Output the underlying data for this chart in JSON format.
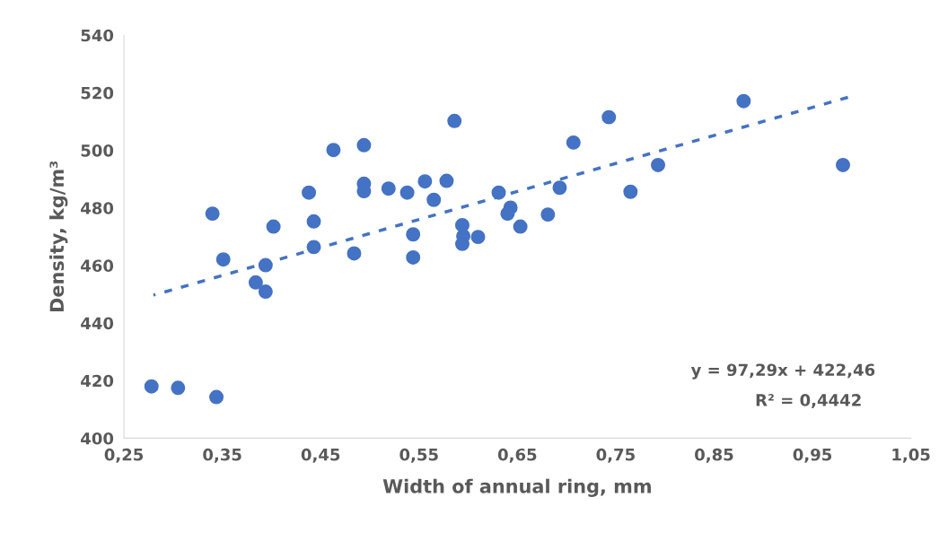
{
  "chart_data": {
    "type": "scatter",
    "xlabel": "Width of annual ring, mm",
    "ylabel": "Density, kg/m³",
    "series": [
      {
        "color": "#4472c4",
        "marker": "circle",
        "x": [
          0.278,
          0.305,
          0.344,
          0.34,
          0.351,
          0.384,
          0.394,
          0.394,
          0.402,
          0.438,
          0.443,
          0.443,
          0.484,
          0.463,
          0.494,
          0.494,
          0.494,
          0.519,
          0.538,
          0.544,
          0.544,
          0.556,
          0.565,
          0.578,
          0.586,
          0.594,
          0.595,
          0.594,
          0.61,
          0.631,
          0.643,
          0.64,
          0.653,
          0.681,
          0.693,
          0.707,
          0.743,
          0.793,
          0.765,
          0.88,
          0.981
        ],
        "values": [
          418.0,
          417.5,
          414.3,
          478.0,
          462.1,
          454.1,
          450.9,
          460.1,
          473.5,
          485.3,
          475.3,
          466.4,
          464.2,
          500.1,
          501.8,
          488.4,
          485.8,
          486.7,
          485.3,
          470.8,
          462.8,
          489.2,
          482.8,
          489.4,
          510.2,
          474.0,
          470.2,
          467.5,
          469.9,
          485.3,
          480.1,
          478.0,
          473.5,
          477.7,
          487.0,
          502.7,
          511.5,
          494.9,
          485.6,
          517.1,
          494.9
        ]
      },
      {
        "type": "line",
        "color": "#4472c4",
        "line_style": "dotted",
        "marker": "none",
        "x": [
          0.28,
          0.99
        ],
        "values": [
          449.7,
          518.8
        ]
      }
    ],
    "xlim": [
      0.25,
      1.05
    ],
    "xticks": [
      {
        "value": 0.25,
        "label": "0,25"
      },
      {
        "value": 0.35,
        "label": "0,35"
      },
      {
        "value": 0.45,
        "label": "0,45"
      },
      {
        "value": 0.55,
        "label": "0,55"
      },
      {
        "value": 0.65,
        "label": "0,65"
      },
      {
        "value": 0.75,
        "label": "0,75"
      },
      {
        "value": 0.85,
        "label": "0,85"
      },
      {
        "value": 0.95,
        "label": "0,95"
      },
      {
        "value": 1.05,
        "label": "1,05"
      }
    ],
    "ylim": [
      400,
      540
    ],
    "yticks": [
      400,
      420,
      440,
      460,
      480,
      500,
      520,
      540
    ],
    "grid": false,
    "legend": false,
    "annotations": [
      "y = 97,29x + 422,46",
      "R² = 0,4442"
    ]
  }
}
